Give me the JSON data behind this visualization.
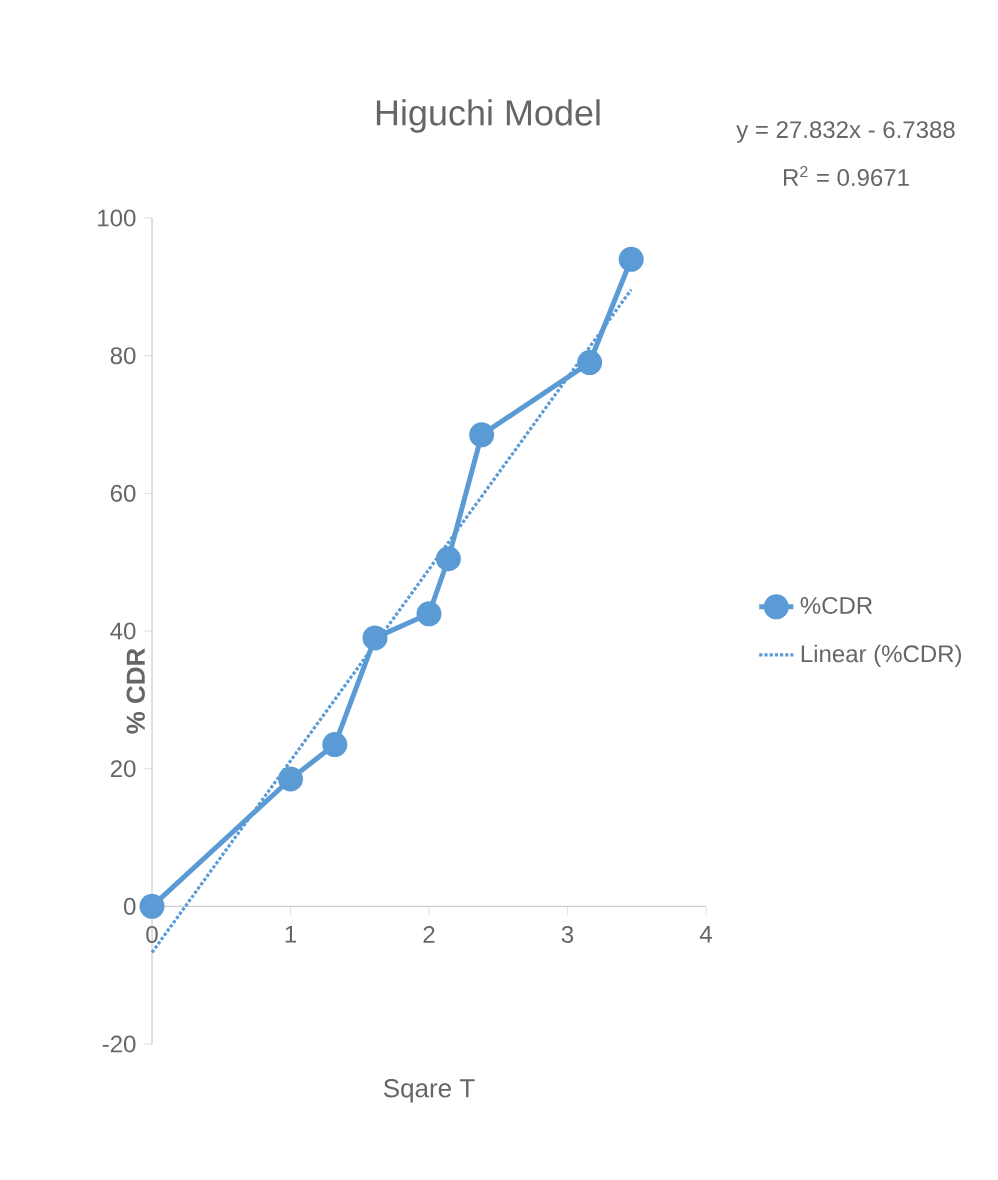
{
  "chart_data": {
    "type": "line",
    "title": "Higuchi Model",
    "xlabel": "Sqare T",
    "ylabel": "% CDR",
    "annotations": [
      "y = 27.832x - 6.7388",
      "R$^{2}$ = 0.9671"
    ],
    "xlim": [
      0,
      4
    ],
    "xticks": [
      0,
      1,
      2,
      3,
      4
    ],
    "ylim": [
      -20,
      100
    ],
    "yticks": [
      -20,
      0,
      20,
      40,
      60,
      80,
      100
    ],
    "grid": false,
    "legend": "right",
    "series": [
      {
        "name": "%CDR",
        "color": "#5b9bd5",
        "marker": "circle",
        "line_style": "solid",
        "x": [
          0,
          1,
          1.32,
          1.61,
          2,
          2.14,
          2.38,
          3.16,
          3.46
        ],
        "values": [
          0,
          18.5,
          23.5,
          39,
          42.5,
          50.5,
          68.5,
          79,
          94
        ]
      },
      {
        "name": "Linear (%CDR)",
        "color": "#5b9bd5",
        "marker": "none",
        "line_style": "dotted",
        "x": [
          0,
          3.46
        ],
        "values": [
          -6.7,
          89.6
        ]
      }
    ]
  }
}
